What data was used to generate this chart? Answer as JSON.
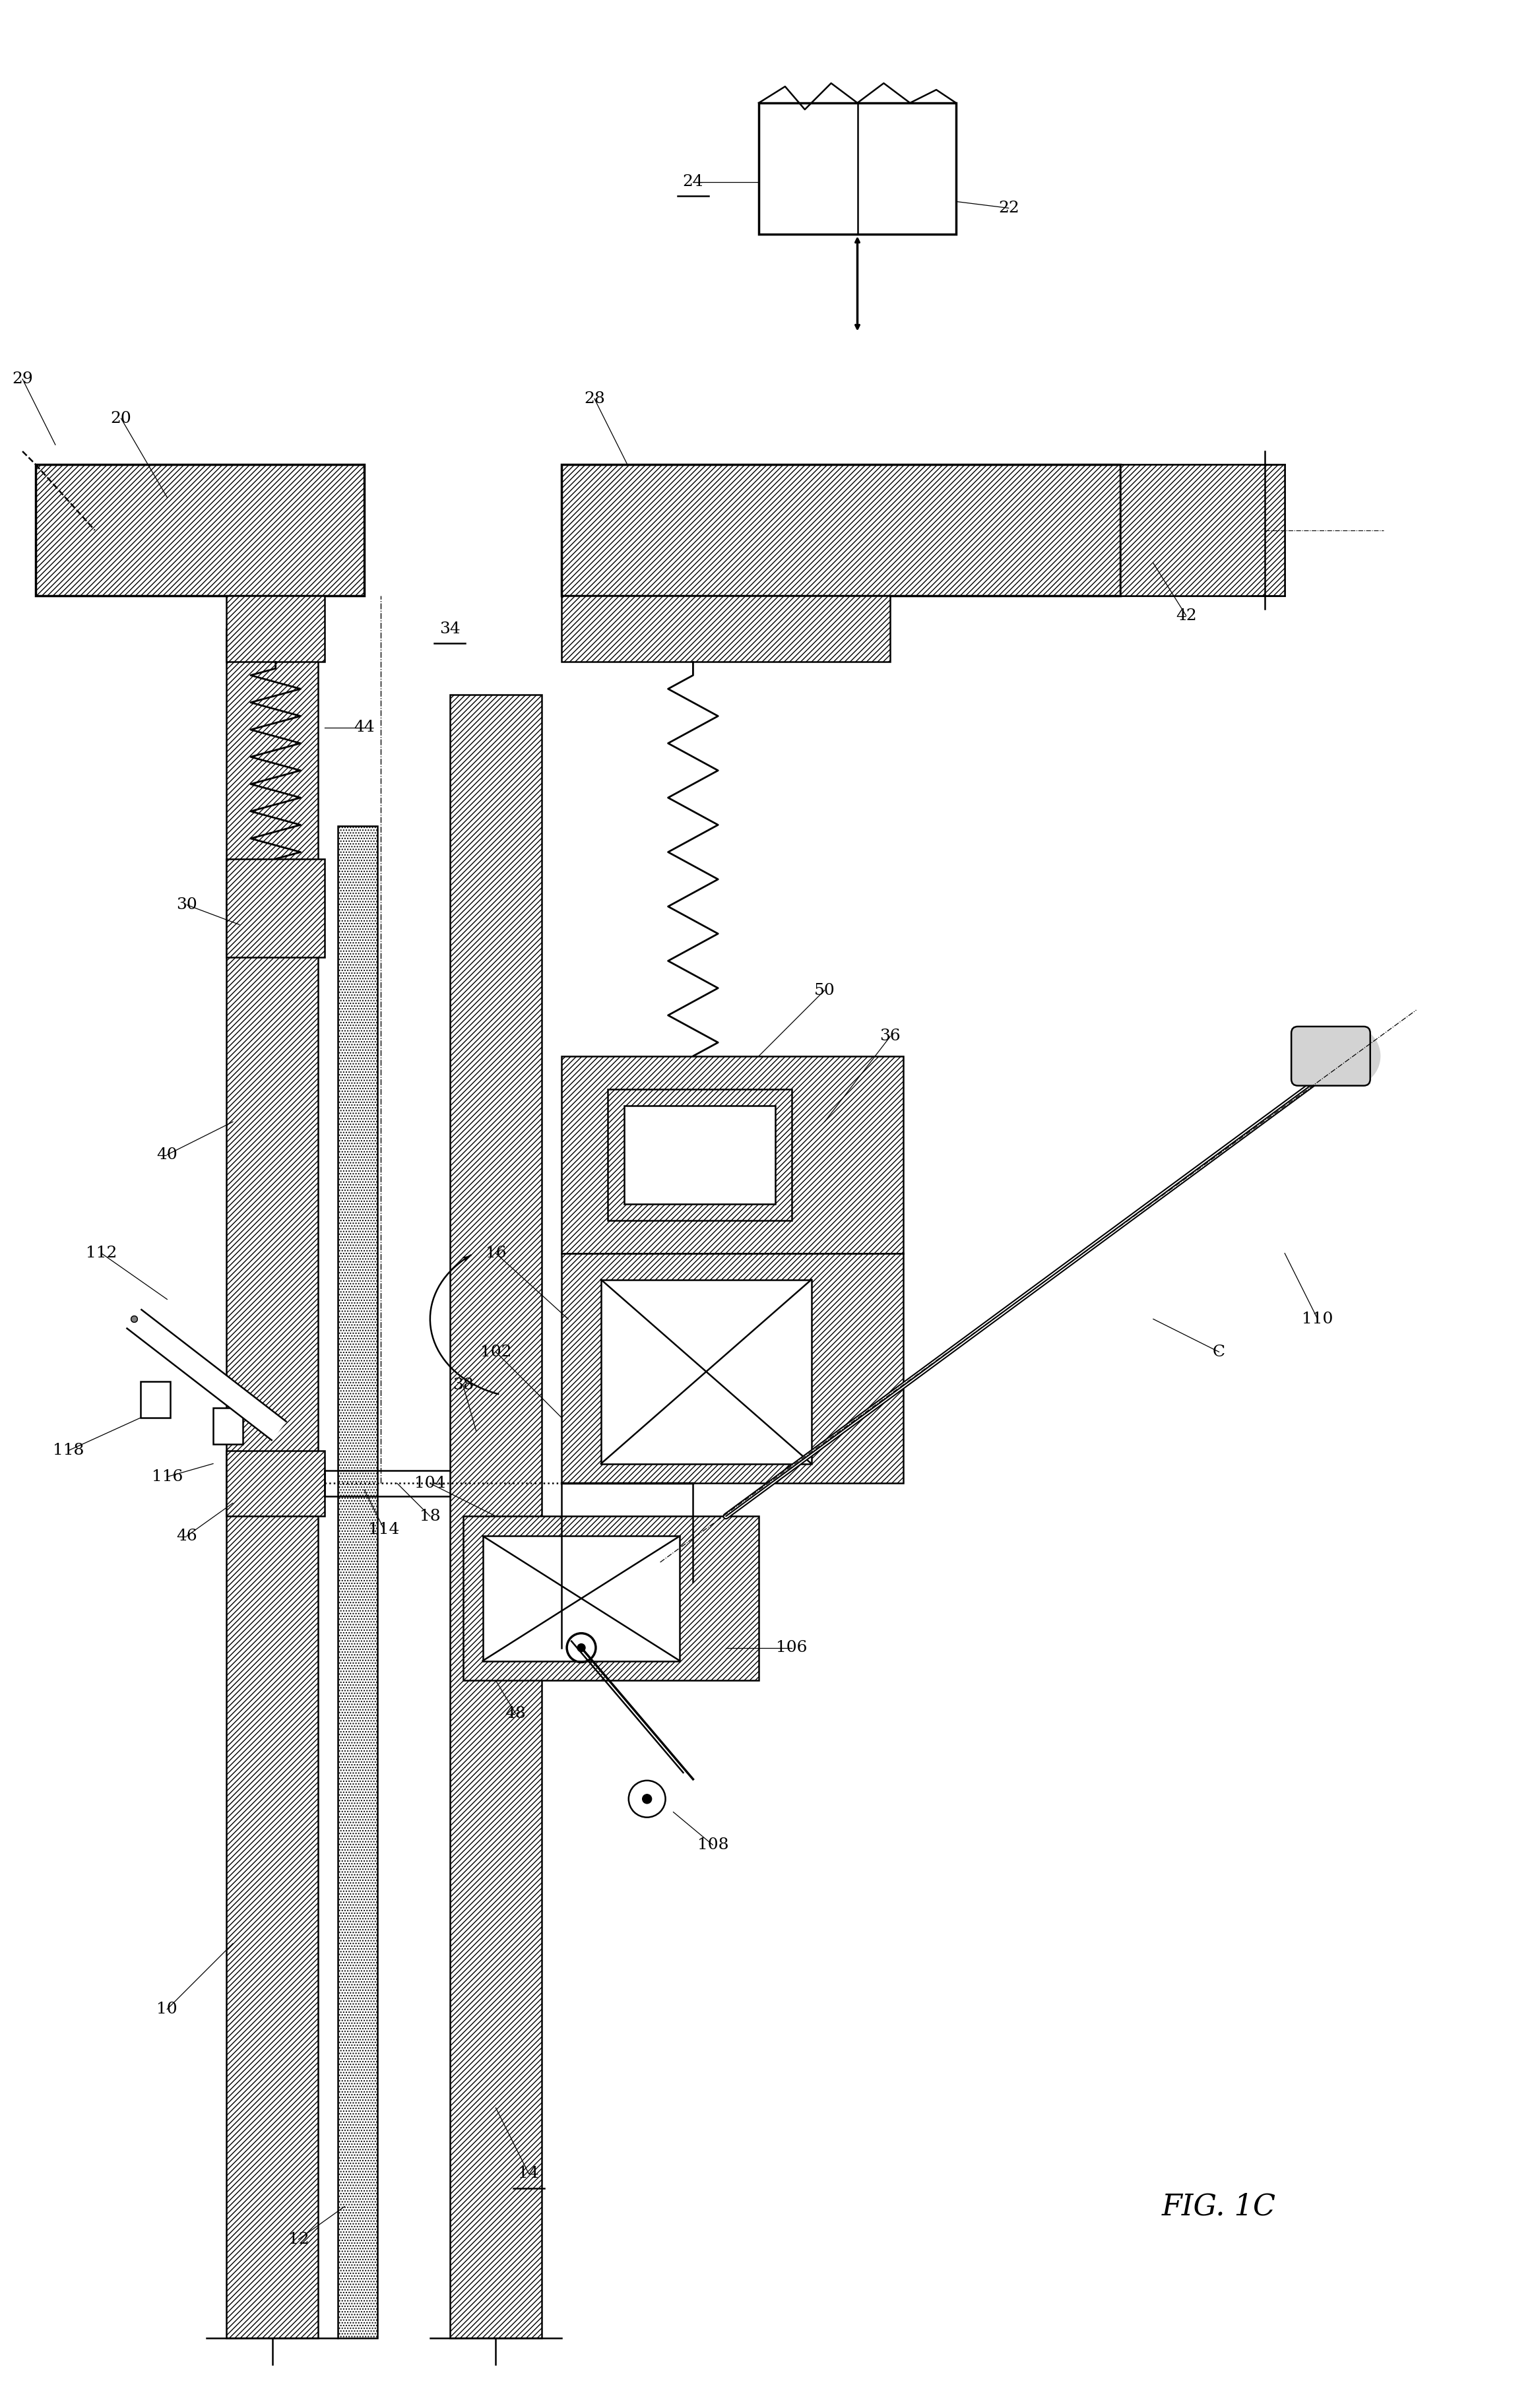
{
  "bg_color": "#ffffff",
  "line_color": "#000000",
  "fig_label": "FIG. 1C",
  "title_fs": 28,
  "label_fs": 18,
  "lw": 1.8,
  "lw2": 2.5,
  "spring_lw": 2.0,
  "coord": {
    "xlim": [
      0,
      23.28
    ],
    "ylim": [
      0,
      36.5
    ]
  }
}
